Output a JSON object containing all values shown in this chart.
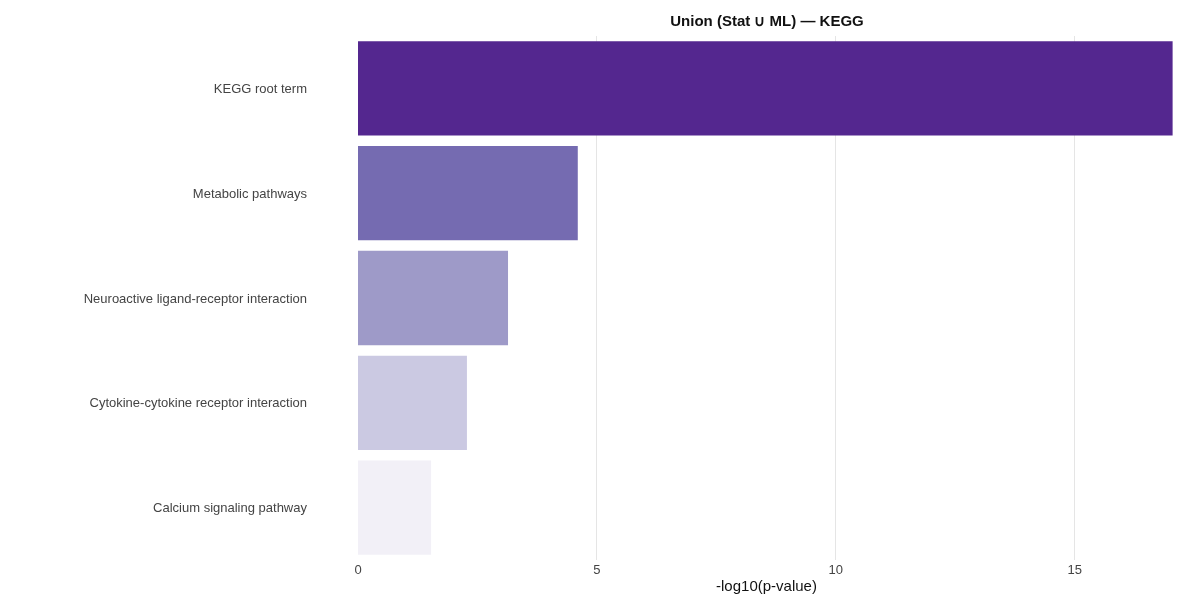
{
  "chart_data": {
    "type": "bar",
    "orientation": "horizontal",
    "title": "Union (Stat ∪ ML) — KEGG",
    "xlabel": "-log10(p-value)",
    "categories": [
      "KEGG root term",
      "Metabolic pathways",
      "Neuroactive ligand-receptor interaction",
      "Cytokine-cytokine receptor interaction",
      "Calcium signaling pathway"
    ],
    "values": [
      17.05,
      4.6,
      3.14,
      2.28,
      1.53
    ],
    "colors": [
      "#54278f",
      "#756bb1",
      "#9e9ac8",
      "#cbc9e2",
      "#f2f0f7"
    ],
    "xlim": [
      0,
      17.1
    ],
    "xticks": [
      0,
      5,
      10,
      15
    ],
    "grid": "x",
    "legend": false
  }
}
